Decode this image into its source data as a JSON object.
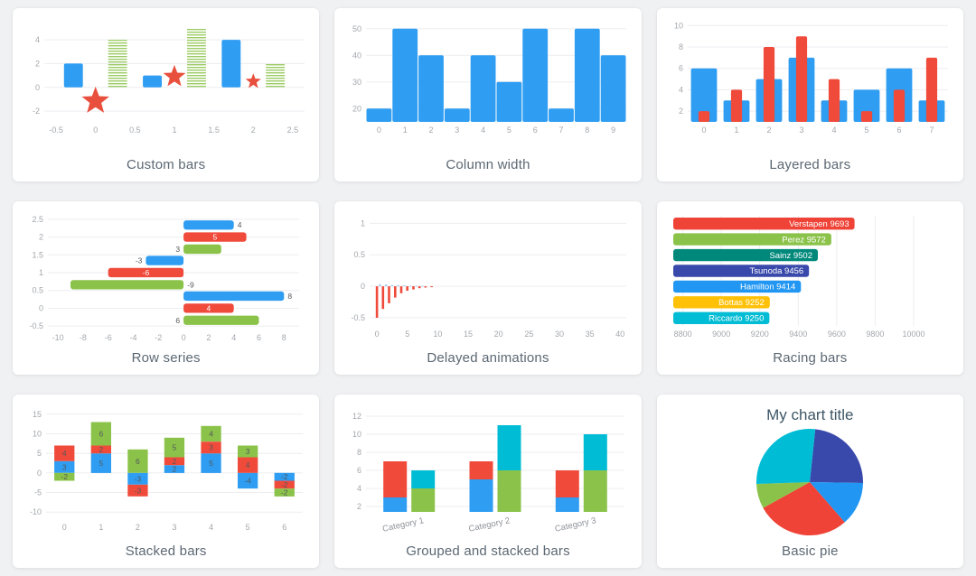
{
  "chart_data": [
    {
      "id": "custom-bars",
      "title": "Custom bars",
      "type": "bar",
      "variant": "custom",
      "x_ticks": [
        -0.5,
        0,
        0.5,
        1,
        1.5,
        2,
        2.5
      ],
      "xlim": [
        -0.65,
        2.65
      ],
      "y_ticks": [
        -2,
        0,
        2,
        4
      ],
      "ylim": [
        -2.9,
        5.6
      ],
      "bars": {
        "name": "blue-bars",
        "color": "#2e9df2",
        "x": [
          -0.28,
          0.72,
          1.72
        ],
        "values": [
          2,
          1,
          4
        ],
        "width": 0.24
      },
      "striped_bars": {
        "name": "green-striped-bars",
        "color": "#9ccc65",
        "x": [
          0.28,
          1.28,
          2.28
        ],
        "values": [
          4,
          5,
          2
        ],
        "width": 0.24
      },
      "stars": {
        "name": "red-stars",
        "color": "#e94f3d",
        "x": [
          0,
          1,
          2
        ],
        "y": [
          -1.15,
          0.9,
          0.5
        ],
        "radii": [
          16,
          13,
          9
        ]
      }
    },
    {
      "id": "column-width",
      "title": "Column width",
      "type": "bar",
      "variant": "columns",
      "categories": [
        "0",
        "1",
        "2",
        "3",
        "4",
        "5",
        "6",
        "7",
        "8",
        "9"
      ],
      "values": [
        20,
        50,
        40,
        20,
        40,
        30,
        50,
        20,
        50,
        40
      ],
      "color": "#2e9df2",
      "y_ticks": [
        20,
        30,
        40,
        50
      ],
      "ylim": [
        15,
        53
      ]
    },
    {
      "id": "layered-bars",
      "title": "Layered bars",
      "type": "bar",
      "variant": "layered",
      "categories": [
        "0",
        "1",
        "2",
        "3",
        "4",
        "5",
        "6",
        "7"
      ],
      "series": [
        {
          "name": "wide-blue",
          "color": "#2e9df2",
          "values": [
            6,
            3,
            5,
            7,
            3,
            4,
            6,
            3
          ],
          "width_ratio": 0.8
        },
        {
          "name": "narrow-red",
          "color": "#f04a3b",
          "values": [
            2,
            4,
            8,
            9,
            5,
            2,
            4,
            7
          ],
          "width_ratio": 0.34
        }
      ],
      "y_ticks": [
        2,
        4,
        6,
        8,
        10
      ],
      "ylim": [
        1,
        10.45
      ]
    },
    {
      "id": "row-series",
      "title": "Row series",
      "type": "bar",
      "variant": "rows",
      "x_ticks": [
        -10,
        -8,
        -6,
        -4,
        -2,
        0,
        2,
        4,
        6,
        8
      ],
      "xlim": [
        -10.8,
        9.2
      ],
      "y_ticks": [
        -0.5,
        0,
        0.5,
        1,
        1.5,
        2,
        2.5
      ],
      "ylim": [
        -0.6,
        2.65
      ],
      "bar_thickness": 0.3,
      "series_colors": [
        "#2e9df2",
        "#f04a3b",
        "#8bc34a"
      ],
      "groups": [
        {
          "center": 2,
          "values": [
            4,
            5,
            3
          ]
        },
        {
          "center": 1,
          "values": [
            -3,
            -6,
            -9
          ]
        },
        {
          "center": 0,
          "values": [
            8,
            4,
            6
          ]
        }
      ]
    },
    {
      "id": "delayed-animations",
      "title": "Delayed animations",
      "type": "bar",
      "variant": "thin",
      "x_ticks": [
        0,
        5,
        10,
        15,
        20,
        25,
        30,
        35,
        40
      ],
      "xlim": [
        -1.2,
        41
      ],
      "y_ticks": [
        -0.5,
        0,
        0.5,
        1
      ],
      "ylim": [
        -0.63,
        1.12
      ],
      "series": [
        {
          "name": "red-decay",
          "color": "#f04a3b",
          "x": [
            0,
            1,
            2,
            3,
            4,
            5,
            6,
            7,
            8,
            9
          ],
          "values": [
            -0.5,
            -0.36,
            -0.27,
            -0.18,
            -0.11,
            -0.07,
            -0.05,
            -0.03,
            -0.02,
            -0.01
          ]
        },
        {
          "name": "blue-dots",
          "color": "#aecff2",
          "x": [
            0.5,
            1.5,
            2.5,
            3.5,
            4.5,
            5.5,
            6.5,
            7.5
          ],
          "values": [
            0.03,
            0.03,
            0.02,
            0.02,
            0.015,
            0.01,
            0.01,
            0.008
          ]
        }
      ]
    },
    {
      "id": "racing-bars",
      "title": "Racing bars",
      "type": "bar",
      "variant": "racing",
      "x_ticks": [
        8800,
        9000,
        9200,
        9400,
        9600,
        9800,
        10000
      ],
      "xlim": [
        8750,
        10160
      ],
      "bars": [
        {
          "label": "Verstapen",
          "value": 9693,
          "color": "#ef4337"
        },
        {
          "label": "Perez",
          "value": 9572,
          "color": "#8bc34a"
        },
        {
          "label": "Sainz",
          "value": 9502,
          "color": "#00897b"
        },
        {
          "label": "Tsunoda",
          "value": 9456,
          "color": "#3949ab"
        },
        {
          "label": "Hamilton",
          "value": 9414,
          "color": "#2196f3"
        },
        {
          "label": "Bottas",
          "value": 9252,
          "color": "#ffc107"
        },
        {
          "label": "Riccardo",
          "value": 9250,
          "color": "#00bcd4"
        }
      ]
    },
    {
      "id": "stacked-bars",
      "title": "Stacked bars",
      "type": "bar",
      "variant": "stacked",
      "categories": [
        "0",
        "1",
        "2",
        "3",
        "4",
        "5",
        "6"
      ],
      "series": [
        {
          "name": "blue",
          "color": "#2e9df2",
          "values": [
            3,
            5,
            -3,
            2,
            5,
            -4,
            -2
          ]
        },
        {
          "name": "red",
          "color": "#f04a3b",
          "values": [
            4,
            2,
            -3,
            2,
            3,
            4,
            -2
          ]
        },
        {
          "name": "green",
          "color": "#8bc34a",
          "values": [
            -2,
            6,
            6,
            5,
            4,
            3,
            -2
          ]
        }
      ],
      "y_ticks": [
        -10,
        -5,
        0,
        5,
        10,
        15
      ],
      "ylim": [
        -11.8,
        16.8
      ]
    },
    {
      "id": "grouped-stacked-bars",
      "title": "Grouped and stacked bars",
      "type": "bar",
      "variant": "groupstack",
      "categories": [
        "Category 1",
        "Category 2",
        "Category 3"
      ],
      "stacks": [
        {
          "series": [
            {
              "name": "blue",
              "color": "#2e9df2",
              "values": [
                3,
                5,
                3
              ]
            },
            {
              "name": "red",
              "color": "#f04a3b",
              "values": [
                4,
                2,
                3
              ]
            }
          ]
        },
        {
          "series": [
            {
              "name": "green",
              "color": "#8bc34a",
              "values": [
                4,
                6,
                6
              ]
            },
            {
              "name": "cyan",
              "color": "#00bcd4",
              "values": [
                2,
                5,
                4
              ]
            }
          ]
        }
      ],
      "y_ticks": [
        2,
        4,
        6,
        8,
        10,
        12
      ],
      "ylim": [
        1.4,
        12.8
      ]
    },
    {
      "id": "basic-pie",
      "title": "Basic pie",
      "type": "pie",
      "variant": "pie",
      "chart_title": "My chart title",
      "start_angle": 6,
      "slices": [
        {
          "name": "indigo",
          "color": "#3949ab",
          "angle": 85
        },
        {
          "name": "blue",
          "color": "#2196f3",
          "angle": 48
        },
        {
          "name": "red",
          "color": "#ef4337",
          "angle": 102
        },
        {
          "name": "green",
          "color": "#8bc34a",
          "angle": 27
        },
        {
          "name": "cyan",
          "color": "#00bcd4",
          "angle": 98
        }
      ]
    }
  ]
}
